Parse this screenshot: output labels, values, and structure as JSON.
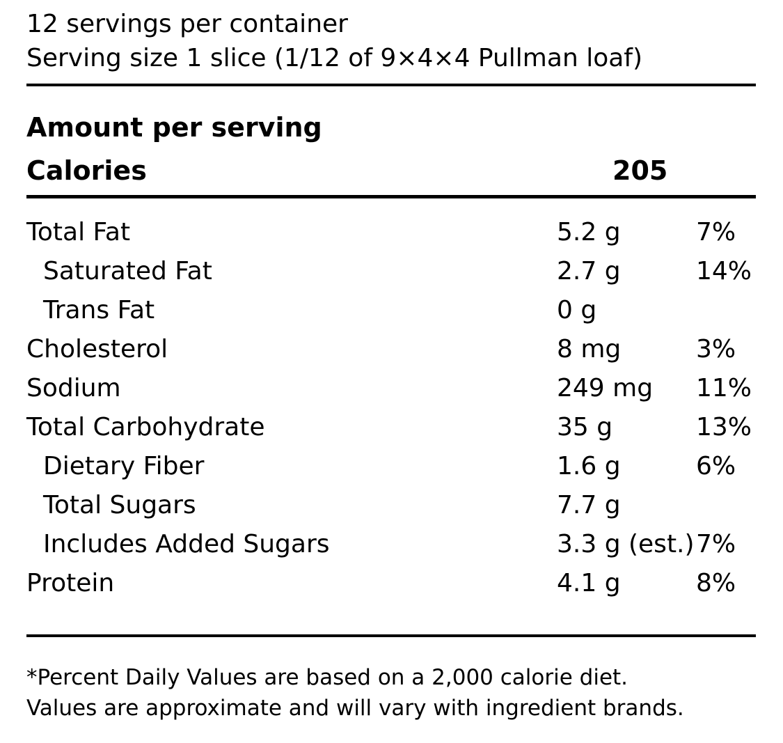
{
  "page": {
    "background_color": "#ffffff",
    "text_color": "#000000"
  },
  "header": {
    "servings_per_container": "12 servings per container",
    "serving_size": "Serving size 1 slice (1/12 of 9×4×4 Pullman loaf)"
  },
  "calories_section": {
    "amount_per_serving_label": "Amount per serving",
    "calories_label": "Calories",
    "calories_value": "205"
  },
  "nutrients": [
    {
      "name": "Total Fat",
      "amount": "5.2 g",
      "daily_value": "7%",
      "indent": false
    },
    {
      "name": "Saturated Fat",
      "amount": "2.7 g",
      "daily_value": "14%",
      "indent": true
    },
    {
      "name": "Trans Fat",
      "amount": "0 g",
      "daily_value": "",
      "indent": true
    },
    {
      "name": "Cholesterol",
      "amount": "8 mg",
      "daily_value": "3%",
      "indent": false
    },
    {
      "name": "Sodium",
      "amount": "249 mg",
      "daily_value": "11%",
      "indent": false
    },
    {
      "name": "Total Carbohydrate",
      "amount": "35 g",
      "daily_value": "13%",
      "indent": false
    },
    {
      "name": "Dietary Fiber",
      "amount": "1.6 g",
      "daily_value": "6%",
      "indent": true
    },
    {
      "name": "Total Sugars",
      "amount": "7.7 g",
      "daily_value": "",
      "indent": true
    },
    {
      "name": "Includes Added Sugars",
      "amount": "3.3 g (est.)",
      "daily_value": "7%",
      "indent": true
    },
    {
      "name": "Protein",
      "amount": "4.1 g",
      "daily_value": "8%",
      "indent": false
    }
  ],
  "footnotes": [
    "*Percent Daily Values are based on a 2,000 calorie diet.",
    "Values are approximate and will vary with ingredient brands."
  ]
}
